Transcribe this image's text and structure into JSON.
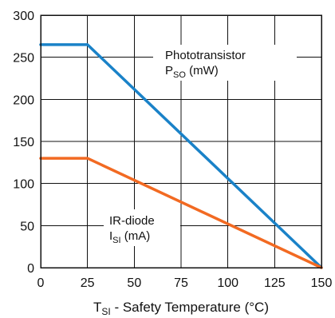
{
  "chart_data": {
    "type": "line",
    "xlabel_main": "T",
    "xlabel_sub": "SI",
    "xlabel_rest": " - Safety Temperature (°C)",
    "xlim": [
      0,
      150
    ],
    "ylim": [
      0,
      300
    ],
    "xticks": [
      0,
      25,
      50,
      75,
      100,
      125,
      150
    ],
    "yticks": [
      0,
      50,
      100,
      150,
      200,
      250,
      300
    ],
    "grid": true,
    "series": [
      {
        "name_line1": "Phototransistor",
        "name_main": "P",
        "name_sub": "SO",
        "name_rest": " (mW)",
        "color": "#1a82c8",
        "x": [
          0,
          25,
          150
        ],
        "y": [
          265,
          265,
          0
        ]
      },
      {
        "name_line1": "IR-diode",
        "name_main": "I",
        "name_sub": "SI",
        "name_rest": " (mA)",
        "color": "#f26a22",
        "x": [
          0,
          25,
          150
        ],
        "y": [
          130,
          130,
          0
        ]
      }
    ]
  }
}
